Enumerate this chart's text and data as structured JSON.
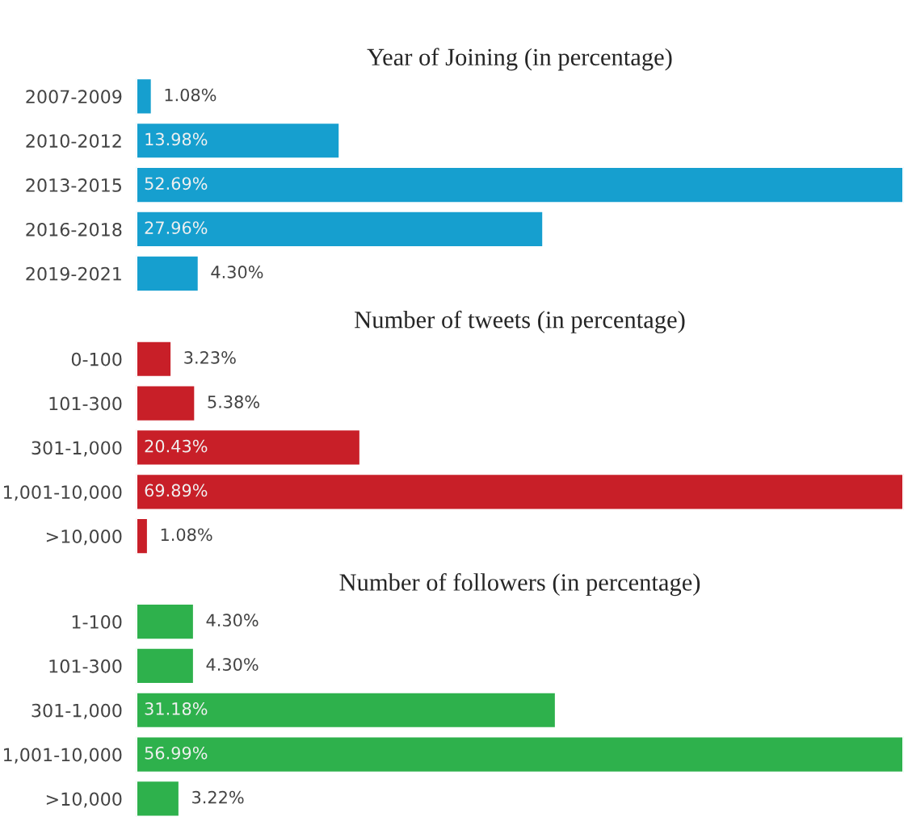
{
  "chart_data": [
    {
      "type": "bar",
      "orientation": "horizontal",
      "title": "Year of Joining (in percentage)",
      "categories": [
        "2007-2009",
        "2010-2012",
        "2013-2015",
        "2016-2018",
        "2019-2021"
      ],
      "values": [
        1.08,
        13.98,
        52.69,
        27.96,
        4.3
      ],
      "value_labels": [
        "1.08%",
        "13.98%",
        "52.69%",
        "27.96%",
        "4.30%"
      ],
      "color": "#169fcf"
    },
    {
      "type": "bar",
      "orientation": "horizontal",
      "title": "Number of tweets (in percentage)",
      "categories": [
        "0-100",
        "101-300",
        "301-1,000",
        "1,001-10,000",
        ">10,000"
      ],
      "values": [
        3.23,
        5.38,
        20.43,
        69.89,
        1.08
      ],
      "value_labels": [
        "3.23%",
        "5.38%",
        "20.43%",
        "69.89%",
        "1.08%"
      ],
      "color": "#c81f28"
    },
    {
      "type": "bar",
      "orientation": "horizontal",
      "title": "Number of followers (in percentage)",
      "categories": [
        "1-100",
        "101-300",
        "301-1,000",
        "1,001-10,000",
        ">10,000"
      ],
      "values": [
        4.3,
        4.3,
        31.18,
        56.99,
        3.22
      ],
      "value_labels": [
        "4.30%",
        "4.30%",
        "31.18%",
        "56.99%",
        "3.22%"
      ],
      "color": "#2eb14c"
    }
  ]
}
